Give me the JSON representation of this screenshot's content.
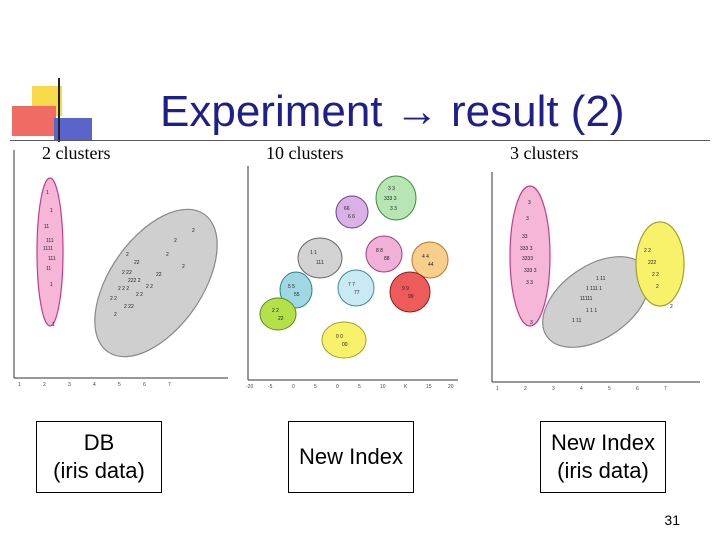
{
  "slide": {
    "title": "Experiment → result (2)",
    "page_number": "31"
  },
  "plots": [
    {
      "label": "2 clusters",
      "caption_lines": [
        "DB",
        "(iris data)"
      ]
    },
    {
      "label": "10 clusters",
      "caption_lines": [
        "New Index"
      ]
    },
    {
      "label": "3 clusters",
      "caption_lines": [
        "New Index",
        "(iris data)"
      ]
    }
  ],
  "colors": {
    "title": "#1f1f8c",
    "pink": "#f6b6d8",
    "gray": "#cfcfcf",
    "yellow": "#f8f26a"
  }
}
